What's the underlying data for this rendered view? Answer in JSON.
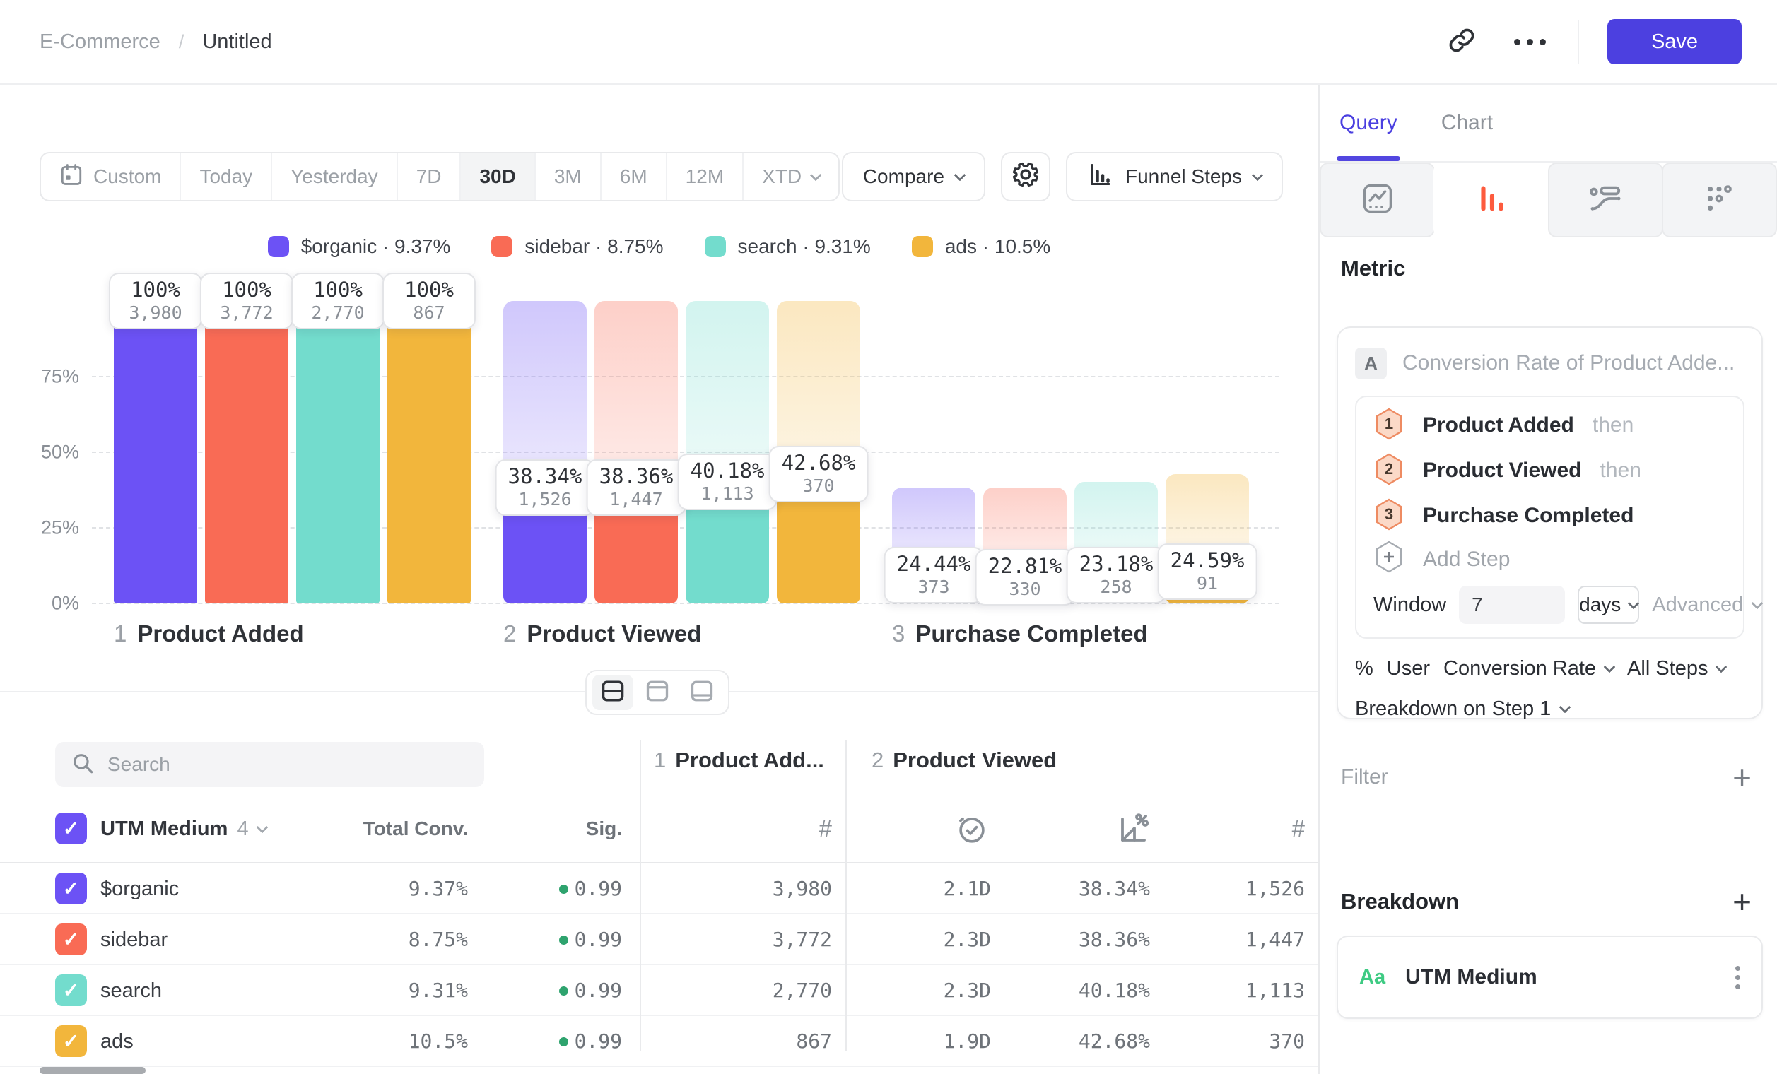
{
  "header": {
    "breadcrumb_project": "E-Commerce",
    "breadcrumb_separator": "/",
    "breadcrumb_title": "Untitled",
    "save_label": "Save"
  },
  "toolbar": {
    "ranges": [
      {
        "label": "Custom",
        "icon": "calendar"
      },
      {
        "label": "Today"
      },
      {
        "label": "Yesterday"
      },
      {
        "label": "7D"
      },
      {
        "label": "30D",
        "selected": true
      },
      {
        "label": "3M"
      },
      {
        "label": "6M"
      },
      {
        "label": "12M"
      },
      {
        "label": "XTD",
        "chevron": true
      }
    ],
    "compare_label": "Compare",
    "chart_type_label": "Funnel Steps"
  },
  "legend": {
    "separator": "·",
    "items": [
      {
        "label": "$organic",
        "value": "9.37%",
        "color": "#6C52F5"
      },
      {
        "label": "sidebar",
        "value": "8.75%",
        "color": "#F96B55"
      },
      {
        "label": "search",
        "value": "9.31%",
        "color": "#73DCCD"
      },
      {
        "label": "ads",
        "value": "10.5%",
        "color": "#F2B63C"
      }
    ]
  },
  "chart_data": {
    "type": "bar",
    "subtype": "funnel-steps",
    "series": [
      "$organic",
      "sidebar",
      "search",
      "ads"
    ],
    "colors": [
      "#6C52F5",
      "#F96B55",
      "#73DCCD",
      "#F2B63C"
    ],
    "y_axis": {
      "tick_values": [
        0,
        25,
        50,
        75
      ],
      "tick_labels": [
        "0%",
        "25%",
        "50%",
        "75%"
      ],
      "max": 100,
      "grid": "dashed"
    },
    "steps": [
      {
        "num": "1",
        "label": "Product Added",
        "bars": [
          {
            "pct_label": "100%",
            "count_label": "3,980",
            "height_pct": 100,
            "ghost_pct": null
          },
          {
            "pct_label": "100%",
            "count_label": "3,772",
            "height_pct": 100,
            "ghost_pct": null
          },
          {
            "pct_label": "100%",
            "count_label": "2,770",
            "height_pct": 100,
            "ghost_pct": null
          },
          {
            "pct_label": "100%",
            "count_label": "867",
            "height_pct": 100,
            "ghost_pct": null
          }
        ]
      },
      {
        "num": "2",
        "label": "Product Viewed",
        "bars": [
          {
            "pct_label": "38.34%",
            "count_label": "1,526",
            "height_pct": 38.34,
            "ghost_pct": 100
          },
          {
            "pct_label": "38.36%",
            "count_label": "1,447",
            "height_pct": 38.36,
            "ghost_pct": 100
          },
          {
            "pct_label": "40.18%",
            "count_label": "1,113",
            "height_pct": 40.18,
            "ghost_pct": 100
          },
          {
            "pct_label": "42.68%",
            "count_label": "370",
            "height_pct": 42.68,
            "ghost_pct": 100
          }
        ]
      },
      {
        "num": "3",
        "label": "Purchase Completed",
        "bars": [
          {
            "pct_label": "24.44%",
            "count_label": "373",
            "height_pct": 9.37,
            "ghost_pct": 38.34
          },
          {
            "pct_label": "22.81%",
            "count_label": "330",
            "height_pct": 8.75,
            "ghost_pct": 38.36
          },
          {
            "pct_label": "23.18%",
            "count_label": "258",
            "height_pct": 9.31,
            "ghost_pct": 40.18
          },
          {
            "pct_label": "24.59%",
            "count_label": "91",
            "height_pct": 10.5,
            "ghost_pct": 42.68
          }
        ]
      }
    ]
  },
  "table": {
    "search_placeholder": "Search",
    "groups": [
      {
        "num": "1",
        "label": "Product Add..."
      },
      {
        "num": "2",
        "label": "Product Viewed"
      }
    ],
    "header": {
      "breakdown_label": "UTM Medium",
      "breakdown_count": "4",
      "total_conv": "Total Conv.",
      "sig": "Sig.",
      "check": "✓"
    },
    "rows": [
      {
        "label": "$organic",
        "color": "#6C52F5",
        "total_conv": "9.37%",
        "sig": "0.99",
        "step1_count": "3,980",
        "time": "2.1D",
        "conv": "38.34%",
        "count": "1,526"
      },
      {
        "label": "sidebar",
        "color": "#F96B55",
        "total_conv": "8.75%",
        "sig": "0.99",
        "step1_count": "3,772",
        "time": "2.3D",
        "conv": "38.36%",
        "count": "1,447"
      },
      {
        "label": "search",
        "color": "#73DCCD",
        "total_conv": "9.31%",
        "sig": "0.99",
        "step1_count": "2,770",
        "time": "2.3D",
        "conv": "40.18%",
        "count": "1,113"
      },
      {
        "label": "ads",
        "color": "#F2B63C",
        "total_conv": "10.5%",
        "sig": "0.99",
        "step1_count": "867",
        "time": "1.9D",
        "conv": "42.68%",
        "count": "370"
      }
    ]
  },
  "panel": {
    "tabs": {
      "query": "Query",
      "chart": "Chart"
    },
    "metric_heading": "Metric",
    "metric_badge": "A",
    "metric_label": "Conversion Rate of Product Adde...",
    "steps": [
      {
        "num": "1",
        "label": "Product Added",
        "suffix": "then"
      },
      {
        "num": "2",
        "label": "Product Viewed",
        "suffix": "then"
      },
      {
        "num": "3",
        "label": "Purchase Completed",
        "suffix": ""
      }
    ],
    "add_step_label": "Add Step",
    "window": {
      "label": "Window",
      "value": "7",
      "unit": "days",
      "advanced": "Advanced"
    },
    "measure": {
      "prefix": "%",
      "user": "User",
      "type": "Conversion Rate",
      "scope": "All Steps"
    },
    "breakdown_on_label": "Breakdown on Step 1",
    "filter_label": "Filter",
    "breakdown_heading": "Breakdown",
    "breakdown_item": {
      "type_badge": "Aa",
      "label": "UTM Medium"
    },
    "accent": "#4A3FE0",
    "funnel_icon_color": "#FD5B3E"
  }
}
